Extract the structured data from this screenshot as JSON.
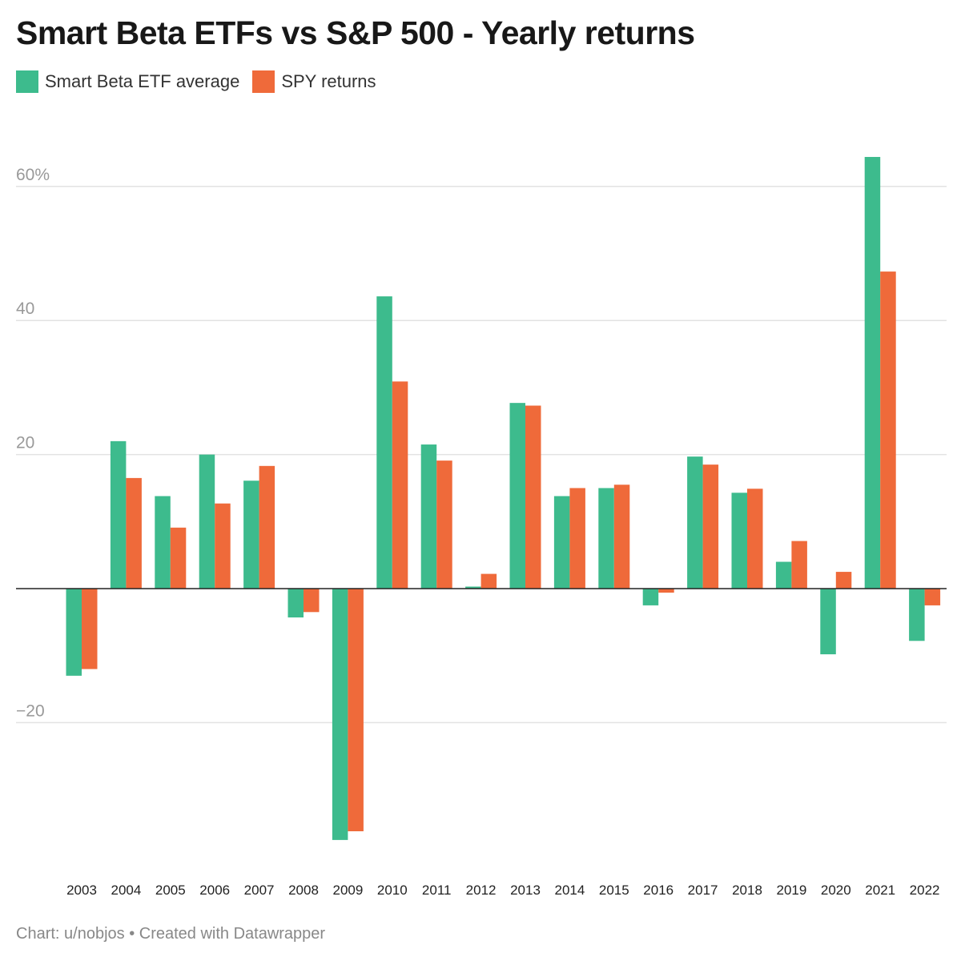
{
  "title": "Smart Beta ETFs vs S&P 500 - Yearly returns",
  "footer": "Chart: u/nobjos • Created with Datawrapper",
  "colors": {
    "smart_beta": "#3dbb8d",
    "spy": "#ef6a3a",
    "grid": "#e2e2e2",
    "axis": "#222222"
  },
  "chart_data": {
    "type": "bar",
    "title": "Smart Beta ETFs vs S&P 500 - Yearly returns",
    "xlabel": "",
    "ylabel": "",
    "ylim": [
      -40,
      65
    ],
    "yticks": [
      {
        "value": 60,
        "label": "60%"
      },
      {
        "value": 40,
        "label": "40"
      },
      {
        "value": 20,
        "label": "20"
      },
      {
        "value": -20,
        "label": "−20"
      }
    ],
    "grid": true,
    "legend_position": "top-left",
    "categories": [
      "2003",
      "2004",
      "2005",
      "2006",
      "2007",
      "2008",
      "2009",
      "2010",
      "2011",
      "2012",
      "2013",
      "2014",
      "2015",
      "2016",
      "2017",
      "2018",
      "2019",
      "2020",
      "2021",
      "2022"
    ],
    "series": [
      {
        "name": "Smart Beta ETF average",
        "values": [
          -13.0,
          22.0,
          13.8,
          20.0,
          16.1,
          -4.3,
          -37.5,
          43.6,
          21.5,
          0.3,
          27.7,
          13.8,
          15.0,
          -2.5,
          19.7,
          14.3,
          4.0,
          -9.8,
          64.4,
          -7.8
        ]
      },
      {
        "name": "SPY returns",
        "values": [
          -12.0,
          16.5,
          9.1,
          12.7,
          18.3,
          -3.5,
          -36.2,
          30.9,
          19.1,
          2.2,
          27.3,
          15.0,
          15.5,
          -0.6,
          18.5,
          14.9,
          7.1,
          2.5,
          47.3,
          -2.5
        ]
      }
    ]
  }
}
